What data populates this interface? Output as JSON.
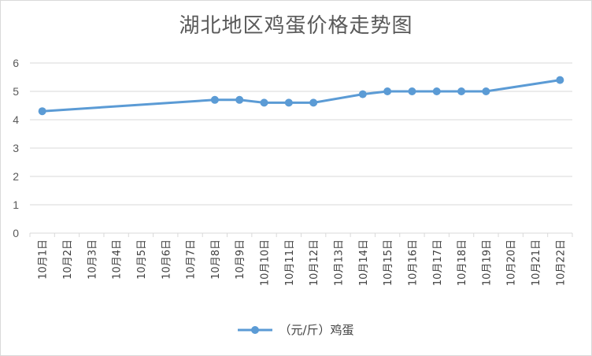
{
  "chart_data": {
    "type": "line",
    "title": "湖北地区鸡蛋价格走势图",
    "xlabel": "",
    "ylabel": "",
    "ylim": [
      0,
      6
    ],
    "yticks": [
      "0",
      "1",
      "2",
      "3",
      "4",
      "5",
      "6"
    ],
    "grid": true,
    "legend_position": "bottom",
    "categories": [
      "10月1日",
      "10月2日",
      "10月3日",
      "10月4日",
      "10月5日",
      "10月6日",
      "10月7日",
      "10月8日",
      "10月9日",
      "10月10日",
      "10月11日",
      "10月12日",
      "10月13日",
      "10月14日",
      "10月15日",
      "10月16日",
      "10月17日",
      "10月18日",
      "10月19日",
      "10月20日",
      "10月21日",
      "10月22日"
    ],
    "series": [
      {
        "name": "（元/斤）鸡蛋",
        "color": "#5b9bd5",
        "values": [
          4.3,
          null,
          null,
          null,
          null,
          null,
          null,
          4.7,
          4.7,
          4.6,
          4.6,
          4.6,
          null,
          4.9,
          5.0,
          5.0,
          5.0,
          5.0,
          5.0,
          null,
          null,
          5.4
        ]
      }
    ]
  }
}
